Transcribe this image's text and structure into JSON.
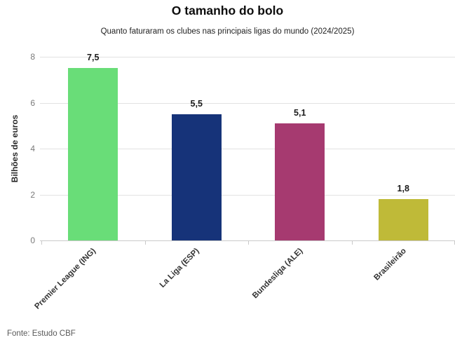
{
  "chart_data": {
    "type": "bar",
    "title": "O tamanho do bolo",
    "subtitle": "Quanto faturaram os clubes nas principais ligas do mundo (2024/2025)",
    "categories": [
      "Premier League (ING)",
      "La Liga (ESP)",
      "Bundesliga (ALE)",
      "Brasileirão"
    ],
    "values": [
      7.5,
      5.5,
      5.1,
      1.8
    ],
    "value_labels": [
      "7,5",
      "5,5",
      "5,1",
      "1,8"
    ],
    "bar_colors": [
      "#69dd78",
      "#163379",
      "#a63a70",
      "#bfba38"
    ],
    "xlabel": "",
    "ylabel": "Bilhões de euros",
    "ylim": [
      0,
      8
    ],
    "yticks": [
      0,
      2,
      4,
      6,
      8
    ],
    "grid": "horizontal",
    "legend": "none",
    "source": "Fonte: Estudo CBF",
    "colors": {
      "background": "#ffffff",
      "gridline": "#e2e2e2",
      "axis_line": "#c9c9c9",
      "tick_label": "#7a7a7a",
      "text": "#1a1a1a"
    }
  }
}
